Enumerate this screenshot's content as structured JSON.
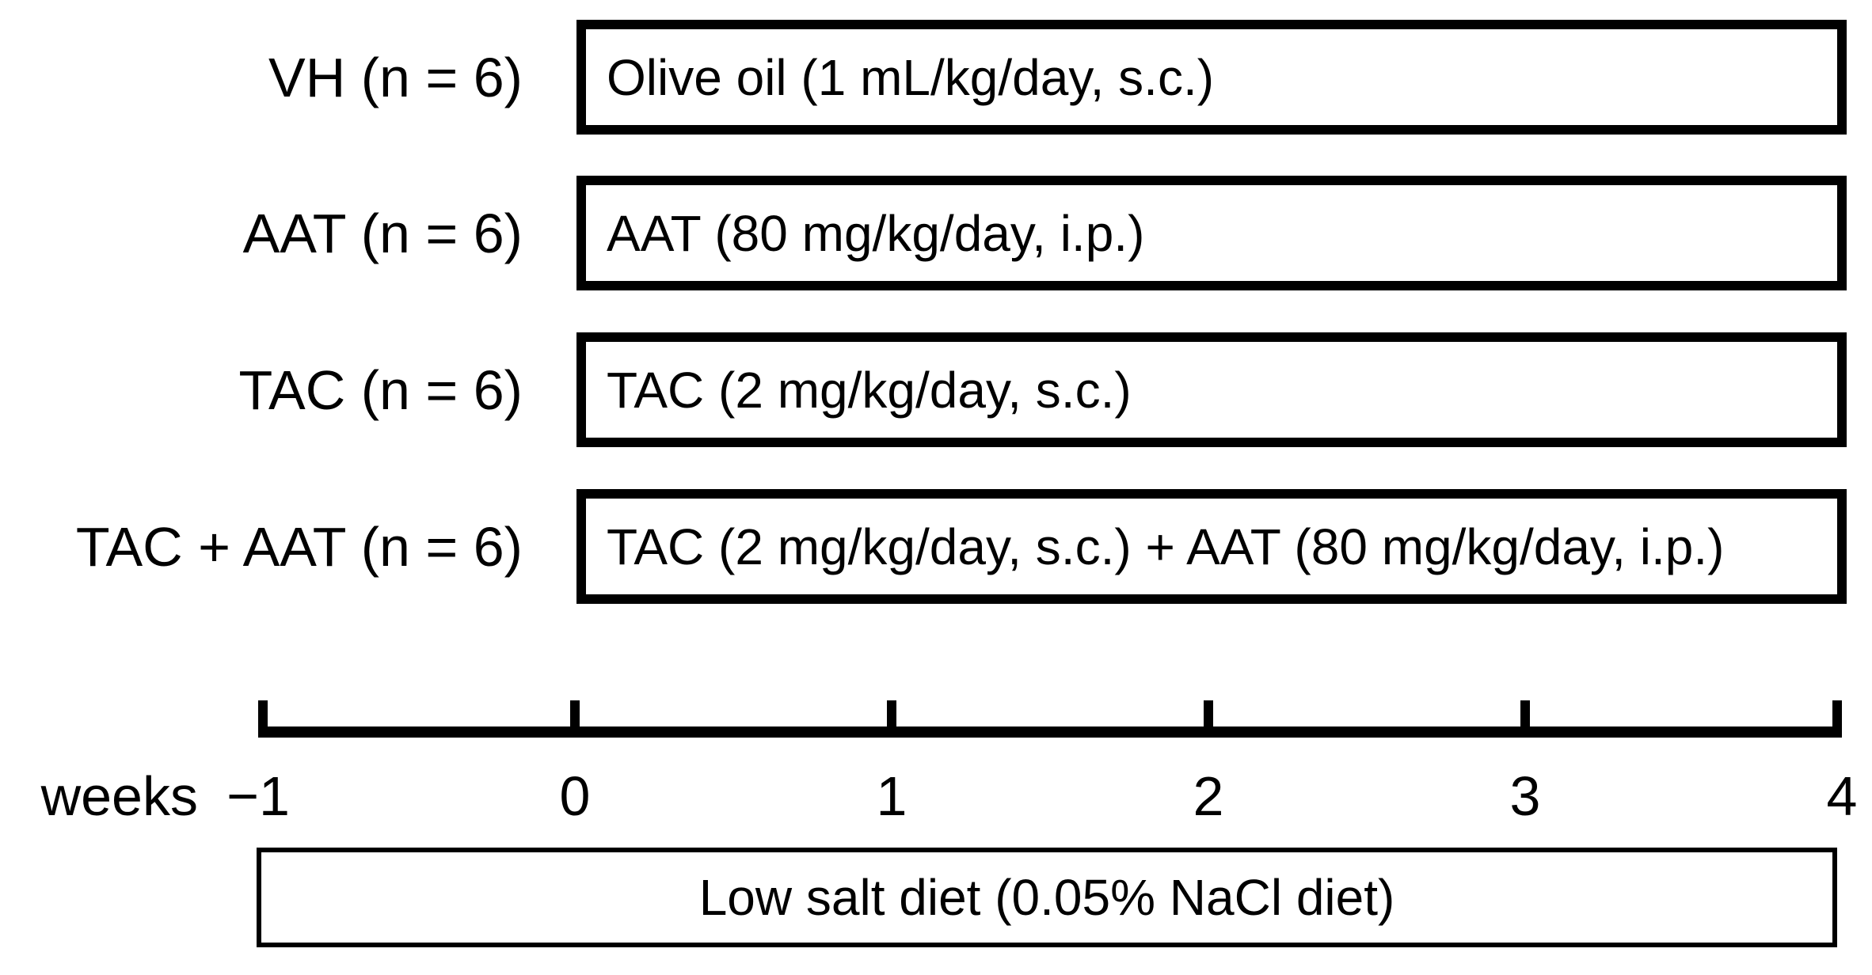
{
  "figure": {
    "groups": [
      {
        "label": "VH (n = 6)",
        "treatment": "Olive oil (1 mL/kg/day, s.c.)"
      },
      {
        "label": "AAT (n = 6)",
        "treatment": "AAT (80 mg/kg/day, i.p.)"
      },
      {
        "label": "TAC (n = 6)",
        "treatment": "TAC (2 mg/kg/day, s.c.)"
      },
      {
        "label": "TAC + AAT (n = 6)",
        "treatment": "TAC (2 mg/kg/day, s.c.) + AAT (80 mg/kg/day, i.p.)"
      }
    ],
    "timeline": {
      "axis_label": "weeks",
      "ticks": [
        "−1",
        "0",
        "1",
        "2",
        "3",
        "4"
      ]
    },
    "diet": {
      "label": "Low salt diet (0.05% NaCl diet)"
    },
    "colors": {
      "foreground": "#000000",
      "background": "#ffffff"
    }
  }
}
